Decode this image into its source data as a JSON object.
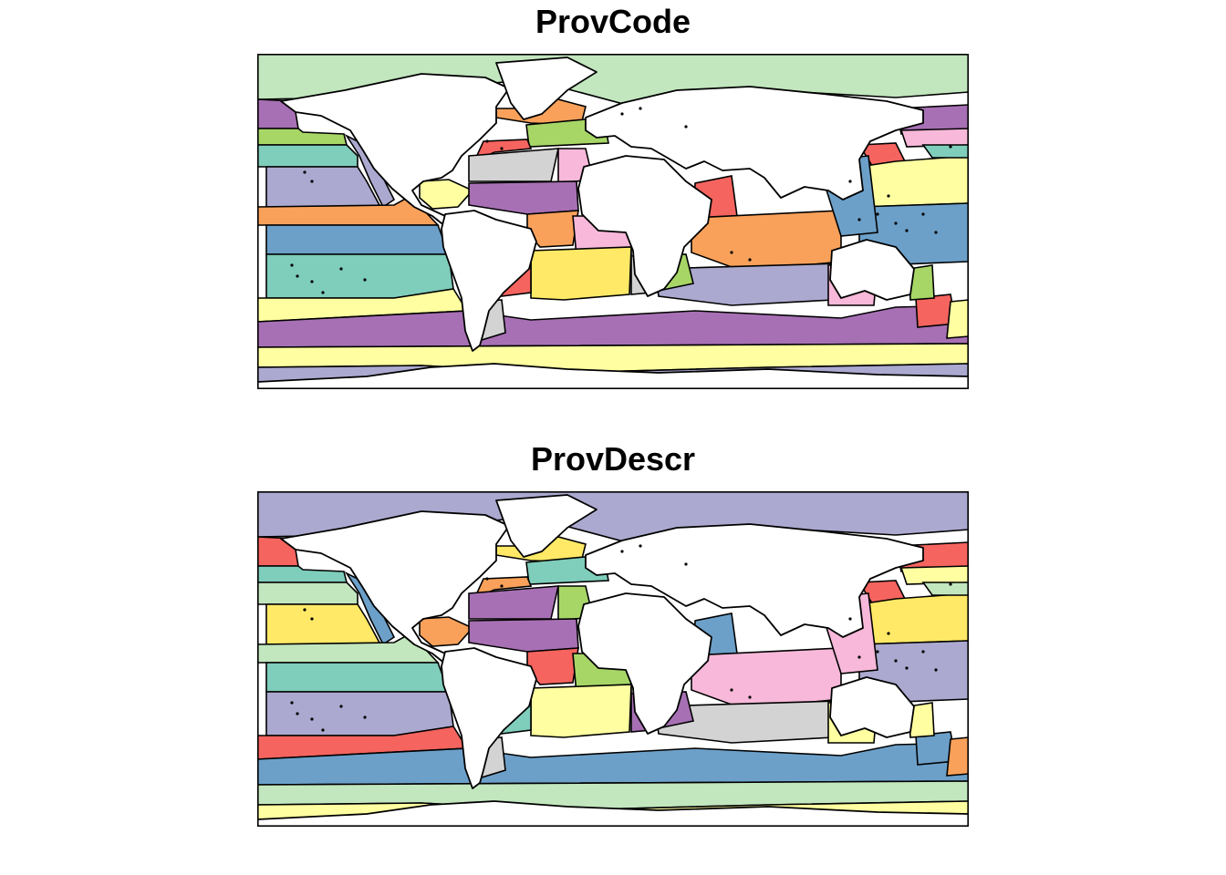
{
  "panels": [
    {
      "title": "ProvCode",
      "map_type": "choropleth world map of ocean provinces",
      "palette": {
        "sea-arctic": "#C2E6BE",
        "ne-pacific-sub": "#A770B4",
        "n-pacific-1": "#A7D667",
        "n-pacific-2": "#7FCDBB",
        "e-pacific-sub": "#ABA9CF",
        "calif-coast": "#ABA9CF",
        "gulf-mexico": "#FFFFA1",
        "tropic-pac-east": "#F9A15A",
        "tropic-pac-south": "#6CA0C9",
        "s-pacific-gyre": "#7FCDBB",
        "s-sub-front": "#FFFFA1",
        "antarctic-circ": "#A770B4",
        "subantarctic": "#FFFFA1",
        "antarctic": "#ABA9CF",
        "greenland-sea": "#F9A15A",
        "n-atlantic-drift": "#A7D667",
        "gulf-stream": "#F5645F",
        "n-atl-sub-gyre": "#D3D3D3",
        "med": "#F7B8D9",
        "n-atl-tropical": "#A770B4",
        "w-trop-atl": "#F9A15A",
        "e-trop-atl": "#F7B8D9",
        "s-atl-gyre": "#FFE966",
        "benguela": "#D3D3D3",
        "e-south-america": "#F5645F",
        "argentina-shelf": "#D3D3D3",
        "arabian-sea": "#F5645F",
        "indian-monsoon": "#F9A15A",
        "indian-s-gyre": "#ABA9CF",
        "e-africa": "#A7D667",
        "kuroshio": "#F5645F",
        "n-pacific-tropical": "#FFFFA1",
        "w-pacific-warm": "#6CA0C9",
        "oyashio": "#A770B4",
        "n-pac-polar": "#F7B8D9",
        "n-pac-trans": "#7FCDBB",
        "australia-w": "#F7B8D9",
        "australia-e": "#F5645F",
        "tasman": "#FFFFA1",
        "indonesia": "#6CA0C9",
        "australia-sw": "#A7D667"
      }
    },
    {
      "title": "ProvDescr",
      "map_type": "choropleth world map of ocean provinces",
      "palette": {
        "sea-arctic": "#ABA9CF",
        "ne-pacific-sub": "#F5645F",
        "n-pacific-1": "#7FCDBB",
        "n-pacific-2": "#C2E6BE",
        "e-pacific-sub": "#FFE966",
        "calif-coast": "#6CA0C9",
        "gulf-mexico": "#F9A15A",
        "tropic-pac-east": "#C2E6BE",
        "tropic-pac-south": "#7FCDBB",
        "s-pacific-gyre": "#ABA9CF",
        "s-sub-front": "#F5645F",
        "antarctic-circ": "#6CA0C9",
        "subantarctic": "#C2E6BE",
        "antarctic": "#FFFFA1",
        "greenland-sea": "#FFE966",
        "n-atlantic-drift": "#7FCDBB",
        "gulf-stream": "#F9A15A",
        "n-atl-sub-gyre": "#A770B4",
        "med": "#A7D667",
        "n-atl-tropical": "#A770B4",
        "w-trop-atl": "#F5645F",
        "e-trop-atl": "#A7D667",
        "s-atl-gyre": "#FFFFA1",
        "benguela": "#A770B4",
        "e-south-america": "#7FCDBB",
        "argentina-shelf": "#D3D3D3",
        "arabian-sea": "#6CA0C9",
        "indian-monsoon": "#F7B8D9",
        "indian-s-gyre": "#D3D3D3",
        "e-africa": "#A770B4",
        "kuroshio": "#F5645F",
        "n-pacific-tropical": "#FFE966",
        "w-pacific-warm": "#ABA9CF",
        "oyashio": "#F5645F",
        "n-pac-polar": "#FFFFA1",
        "n-pac-trans": "#C2E6BE",
        "australia-w": "#FFFFA1",
        "australia-e": "#6CA0C9",
        "tasman": "#F9A15A",
        "indonesia": "#F7B8D9",
        "australia-sw": "#FFFFA1"
      }
    }
  ],
  "land_color": "#FFFFFF",
  "border_color": "#000000"
}
